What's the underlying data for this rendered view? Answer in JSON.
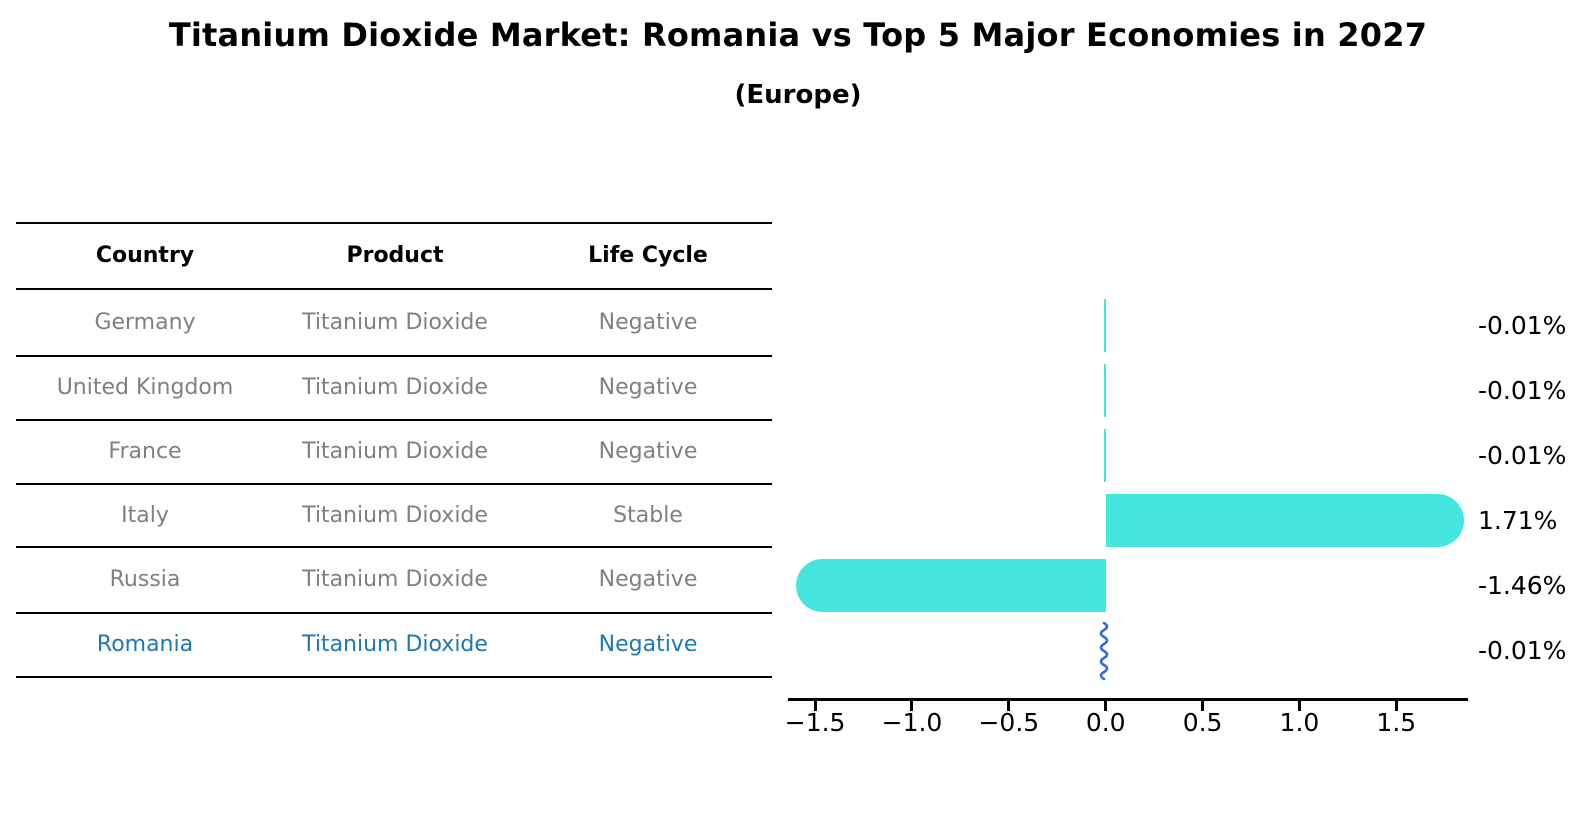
{
  "title": "Titanium Dioxide Market: Romania vs Top 5 Major Economies in 2027",
  "subtitle": "(Europe)",
  "colors": {
    "bar": "#45e6df",
    "highlight_text": "#1f77b4",
    "squiggle": "#2e6bd0",
    "row_text": "#808080",
    "header_text": "#000000",
    "line": "#000000"
  },
  "table": {
    "headers": [
      "Country",
      "Product",
      "Life Cycle"
    ],
    "rows": [
      {
        "country": "Germany",
        "product": "Titanium Dioxide",
        "life_cycle": "Negative",
        "highlight": false
      },
      {
        "country": "United Kingdom",
        "product": "Titanium Dioxide",
        "life_cycle": "Negative",
        "highlight": false
      },
      {
        "country": "France",
        "product": "Titanium Dioxide",
        "life_cycle": "Negative",
        "highlight": false
      },
      {
        "country": "Italy",
        "product": "Titanium Dioxide",
        "life_cycle": "Stable",
        "highlight": false
      },
      {
        "country": "Russia",
        "product": "Titanium Dioxide",
        "life_cycle": "Negative",
        "highlight": false
      },
      {
        "country": "Romania",
        "product": "Titanium Dioxide",
        "life_cycle": "Negative",
        "highlight": true
      }
    ]
  },
  "chart_data": {
    "type": "bar",
    "orientation": "horizontal",
    "title": "Titanium Dioxide Market: Romania vs Top 5 Major Economies in 2027 (Europe)",
    "categories": [
      "Germany",
      "United Kingdom",
      "France",
      "Italy",
      "Russia",
      "Romania"
    ],
    "values": [
      -0.01,
      -0.01,
      -0.01,
      1.71,
      -1.46,
      -0.01
    ],
    "value_labels": [
      "-0.01%",
      "-0.01%",
      "-0.01%",
      "1.71%",
      "-1.46%",
      "-0.01%"
    ],
    "unit": "%",
    "highlight_category": "Romania",
    "xlim": [
      -1.64,
      1.87
    ],
    "xticks": [
      -1.5,
      -1.0,
      -0.5,
      0.0,
      0.5,
      1.0,
      1.5
    ],
    "xtick_labels": [
      "−1.5",
      "−1.0",
      "−0.5",
      "0.0",
      "0.5",
      "1.0",
      "1.5"
    ],
    "grid": false,
    "legend": false
  }
}
